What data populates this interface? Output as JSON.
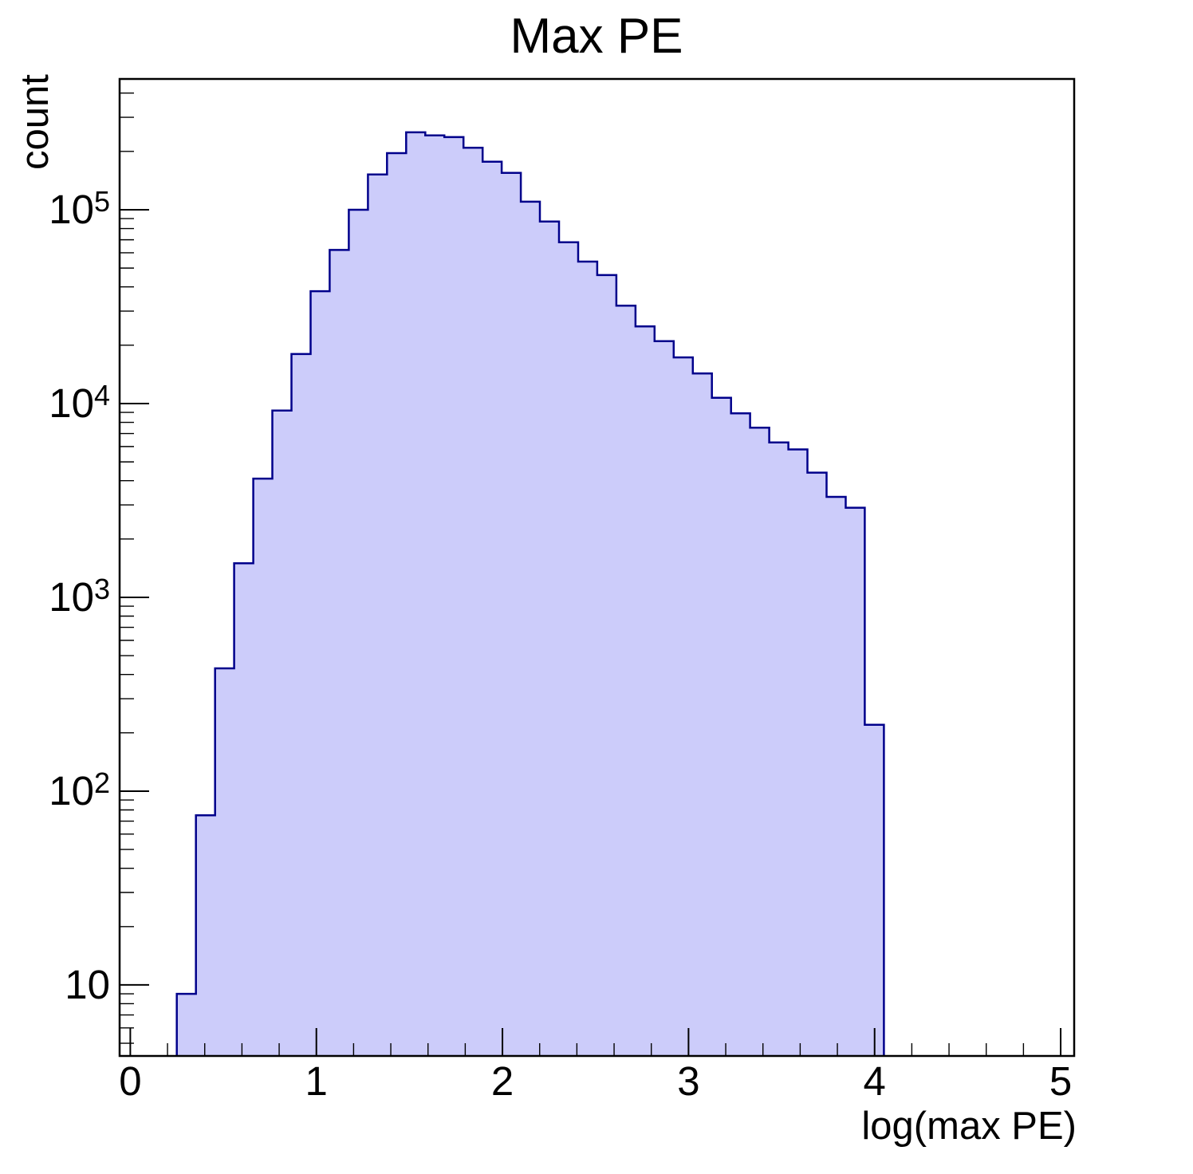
{
  "page_title": "Max PE",
  "chart_data": {
    "type": "bar",
    "subtype": "histogram-step-filled",
    "title": "Max PE",
    "xlabel": "log(max PE)",
    "ylabel": "count",
    "x_scale": "linear",
    "y_scale": "log",
    "grid": false,
    "legend_position": "none",
    "xlim": [
      -0.0574,
      5.0726
    ],
    "ylim": [
      4.3,
      473000
    ],
    "x_ticks": [
      0,
      1,
      2,
      3,
      4,
      5
    ],
    "x_minor_step": 0.2,
    "y_ticks": [
      {
        "value": 10,
        "mantissa": "10",
        "exponent": ""
      },
      {
        "value": 100,
        "mantissa": "10",
        "exponent": "2"
      },
      {
        "value": 1000,
        "mantissa": "10",
        "exponent": "3"
      },
      {
        "value": 10000,
        "mantissa": "10",
        "exponent": "4"
      },
      {
        "value": 100000,
        "mantissa": "10",
        "exponent": "5"
      }
    ],
    "histogram": {
      "bin_start": 0.25,
      "bin_end": 4.05,
      "n_bins": 37,
      "counts": [
        9,
        75,
        430,
        1500,
        4100,
        9200,
        18000,
        38000,
        62000,
        100000,
        152000,
        196000,
        251000,
        242000,
        237000,
        209000,
        177000,
        155000,
        110000,
        87000,
        68000,
        54000,
        46000,
        32000,
        25000,
        21000,
        17300,
        14300,
        10700,
        8900,
        7500,
        6300,
        5800,
        4400,
        3300,
        2900,
        220
      ]
    },
    "colors": {
      "fill": "#ccccfa",
      "edge": "#00008b",
      "axis": "#000000",
      "text": "#000000",
      "background": "#ffffff"
    }
  }
}
